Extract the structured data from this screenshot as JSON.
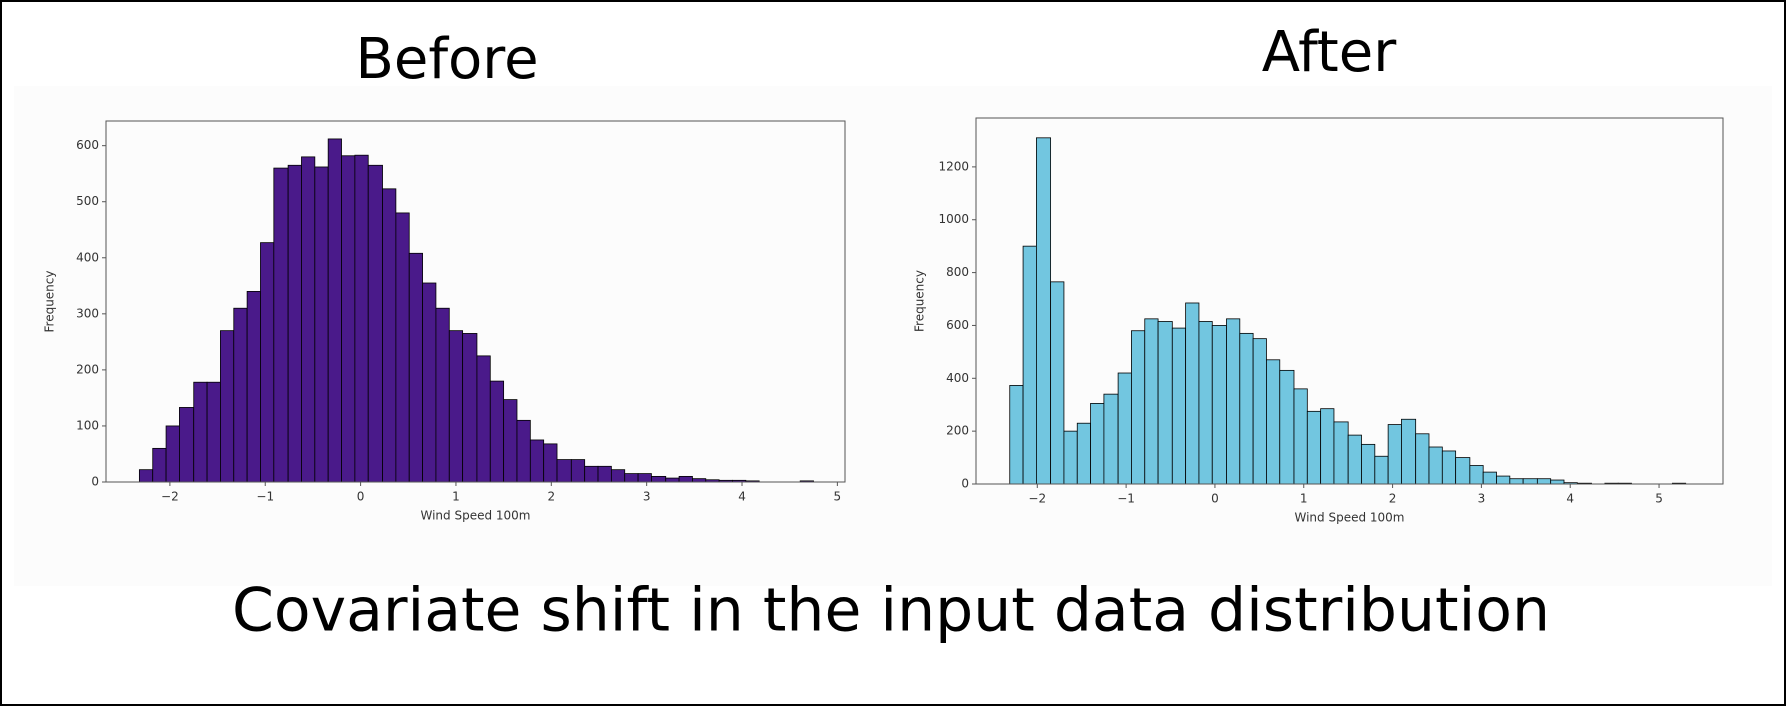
{
  "chart_data": [
    {
      "type": "histogram",
      "title": "Before",
      "xlabel": "Wind Speed 100m",
      "ylabel": "Frequency",
      "color": "#4a1a8a",
      "bins": [
        -2.32,
        -2.18,
        -2.04,
        -1.9,
        -1.75,
        -1.61,
        -1.47,
        -1.33,
        -1.19,
        -1.05,
        -0.91,
        -0.76,
        -0.62,
        -0.48,
        -0.34,
        -0.2,
        -0.06,
        0.08,
        0.23,
        0.37,
        0.51,
        0.65,
        0.79,
        0.93,
        1.07,
        1.22,
        1.36,
        1.5,
        1.64,
        1.78,
        1.92,
        2.06,
        2.21,
        2.35,
        2.49,
        2.63,
        2.77,
        2.91,
        3.05,
        3.2,
        3.34,
        3.48,
        3.62,
        3.76,
        3.9,
        4.04,
        4.18,
        4.33,
        4.47,
        4.61,
        4.75
      ],
      "values": [
        22,
        60,
        100,
        133,
        178,
        178,
        270,
        310,
        340,
        427,
        560,
        565,
        580,
        562,
        612,
        582,
        583,
        565,
        523,
        480,
        408,
        355,
        310,
        270,
        265,
        225,
        180,
        147,
        110,
        75,
        68,
        40,
        40,
        28,
        28,
        22,
        15,
        15,
        10,
        7,
        10,
        6,
        4,
        3,
        3,
        2,
        0,
        0,
        0,
        2
      ],
      "xlim": [
        -2.67,
        5.08
      ],
      "ylim": [
        0,
        644
      ],
      "xticks": [
        {
          "value": -2,
          "label": "−2"
        },
        {
          "value": -1,
          "label": "−1"
        },
        0,
        1,
        2,
        3,
        4,
        5
      ],
      "yticks": [
        0,
        100,
        200,
        300,
        400,
        500,
        600
      ]
    },
    {
      "type": "histogram",
      "title": "After",
      "xlabel": "Wind Speed 100m",
      "ylabel": "Frequency",
      "color": "#72c6e0",
      "bins": [
        -2.31,
        -2.16,
        -2.01,
        -1.85,
        -1.7,
        -1.55,
        -1.4,
        -1.25,
        -1.09,
        -0.94,
        -0.79,
        -0.64,
        -0.48,
        -0.33,
        -0.18,
        -0.03,
        0.13,
        0.28,
        0.43,
        0.58,
        0.73,
        0.89,
        1.04,
        1.19,
        1.34,
        1.5,
        1.65,
        1.8,
        1.95,
        2.1,
        2.26,
        2.41,
        2.56,
        2.71,
        2.87,
        3.02,
        3.17,
        3.32,
        3.47,
        3.63,
        3.78,
        3.93,
        4.08,
        4.24,
        4.39,
        4.54,
        4.69,
        4.84,
        5.0,
        5.15,
        5.3
      ],
      "values": [
        373,
        900,
        1310,
        765,
        200,
        230,
        305,
        340,
        420,
        580,
        625,
        615,
        590,
        685,
        615,
        600,
        625,
        570,
        550,
        470,
        430,
        360,
        275,
        285,
        235,
        185,
        150,
        105,
        225,
        245,
        190,
        140,
        125,
        100,
        70,
        45,
        30,
        20,
        20,
        20,
        15,
        5,
        3,
        0,
        3,
        3,
        0,
        0,
        0,
        3
      ],
      "xlim": [
        -2.69,
        5.72
      ],
      "ylim": [
        0,
        1385
      ],
      "xticks": [
        {
          "value": -2,
          "label": "−2"
        },
        {
          "value": -1,
          "label": "−1"
        },
        0,
        1,
        2,
        3,
        4,
        5
      ],
      "yticks": [
        0,
        200,
        400,
        600,
        800,
        1000,
        1200
      ]
    }
  ],
  "caption": "Covariate shift in the input data distribution"
}
